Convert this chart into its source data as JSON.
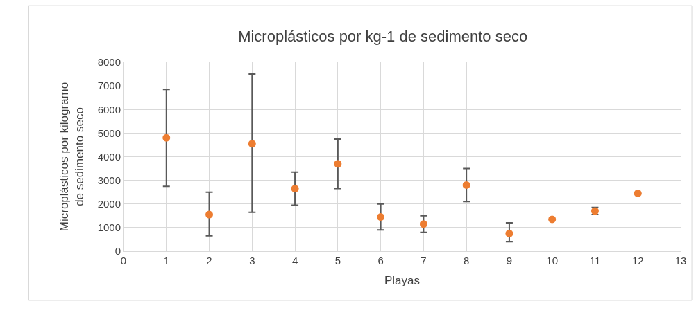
{
  "chart_data": {
    "type": "scatter",
    "title": "Microplásticos por kg-1 de sedimento seco",
    "xlabel": "Playas",
    "ylabel": "Microplásticos por kilogramo de sedimento seco",
    "x": [
      1,
      2,
      3,
      4,
      5,
      6,
      7,
      8,
      9,
      10,
      11,
      12
    ],
    "series": [
      {
        "color": "#ed7d31",
        "values": [
          4800,
          1550,
          4550,
          2650,
          3700,
          1450,
          1150,
          2800,
          750,
          1350,
          1700,
          2450
        ],
        "errors": [
          [
            2750,
            6850
          ],
          [
            650,
            2500
          ],
          [
            1650,
            7500
          ],
          [
            1950,
            3350
          ],
          [
            2650,
            4750
          ],
          [
            900,
            2000
          ],
          [
            800,
            1500
          ],
          [
            2100,
            3500
          ],
          [
            400,
            1200
          ],
          null,
          [
            1550,
            1850
          ],
          null
        ]
      }
    ],
    "xlim": [
      0,
      13
    ],
    "xticks": [
      0,
      1,
      2,
      3,
      4,
      5,
      6,
      7,
      8,
      9,
      10,
      11,
      12,
      13
    ],
    "ylim": [
      0,
      8000
    ],
    "yticks": [
      0,
      1000,
      2000,
      3000,
      4000,
      5000,
      6000,
      7000,
      8000
    ],
    "grid": true,
    "marker": "circle"
  }
}
